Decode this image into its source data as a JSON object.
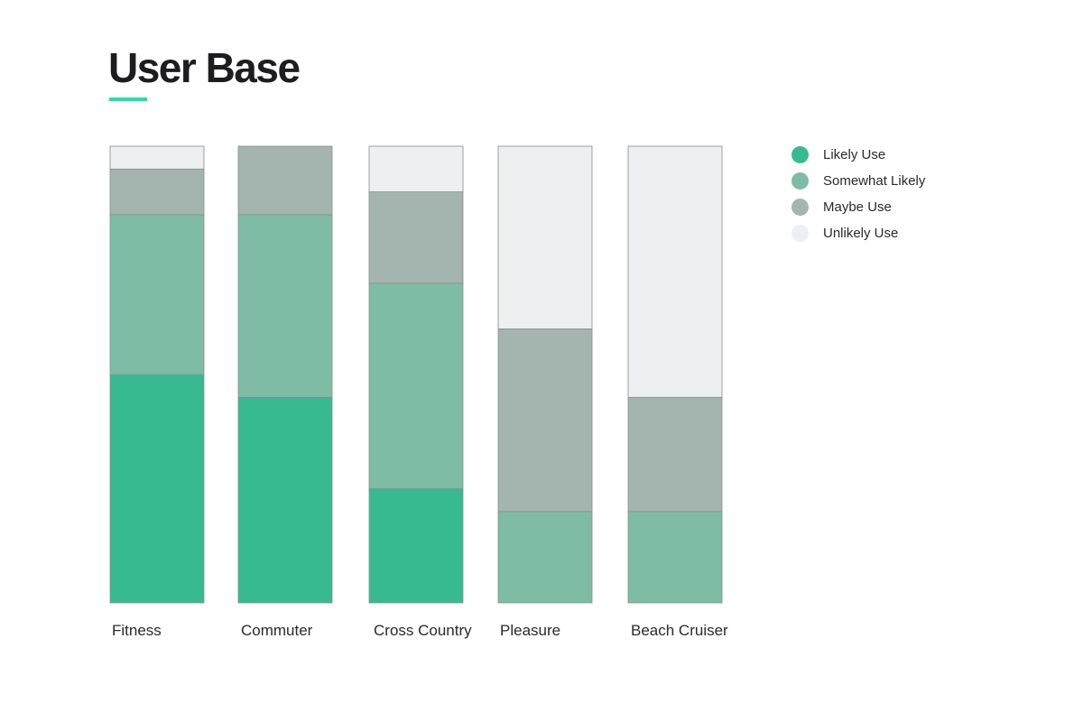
{
  "header": {
    "title": "User Base",
    "accent_color": "#1ee3a8"
  },
  "chart_data": {
    "type": "bar",
    "stacked": true,
    "orientation": "vertical",
    "title": "User Base",
    "xlabel": "",
    "ylabel": "",
    "ylim": [
      0,
      100
    ],
    "grid": false,
    "legend_position": "top-right",
    "categories": [
      "Fitness",
      "Commuter",
      "Cross Country",
      "Pleasure",
      "Beach Cruiser"
    ],
    "series": [
      {
        "name": "Likely Use",
        "color": "#37ba92",
        "values": [
          50,
          45,
          25,
          0,
          0
        ]
      },
      {
        "name": "Somewhat Likely",
        "color": "#7ebca5",
        "values": [
          35,
          40,
          45,
          20,
          20
        ]
      },
      {
        "name": "Maybe Use",
        "color": "#a3b5ae",
        "values": [
          10,
          15,
          20,
          40,
          25
        ]
      },
      {
        "name": "Unlikely Use",
        "color": "#eeeff0",
        "values": [
          5,
          0,
          10,
          40,
          55
        ]
      }
    ]
  }
}
